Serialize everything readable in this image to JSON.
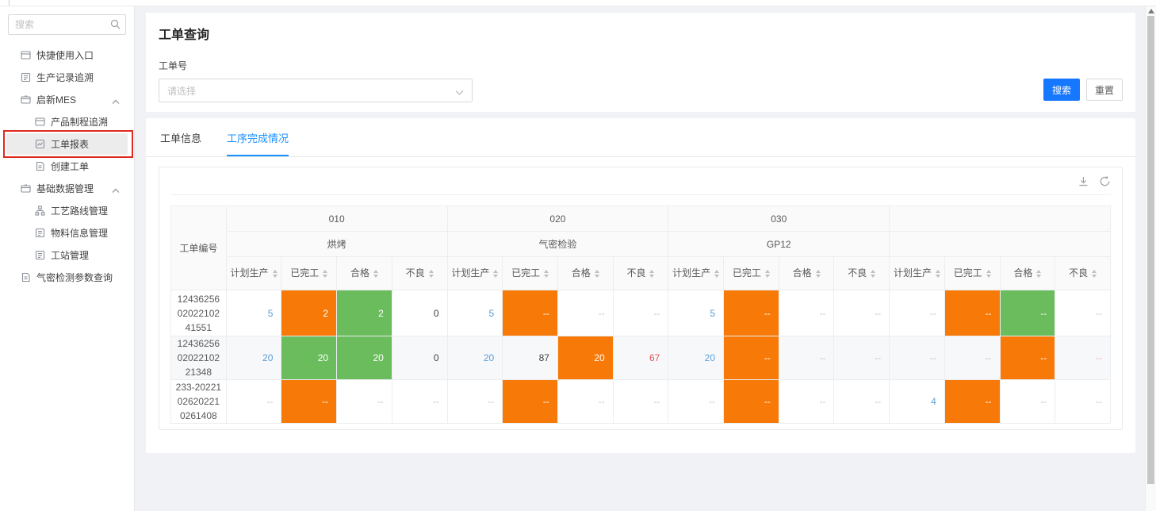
{
  "sidebar": {
    "search_placeholder": "搜索",
    "search_icon": "magnifier-icon",
    "items": [
      {
        "label": "快捷使用入口",
        "slug": "quick-entry",
        "level": 1,
        "icon": "panel-icon"
      },
      {
        "label": "生产记录追溯",
        "slug": "production-record-trace",
        "level": 1,
        "icon": "record-icon"
      },
      {
        "label": "启新MES",
        "slug": "qixin-mes",
        "level": 1,
        "icon": "box-icon",
        "chevron": "up"
      },
      {
        "label": "产品制程追溯",
        "slug": "product-process-trace",
        "level": 2,
        "icon": "panel-icon"
      },
      {
        "label": "工单报表",
        "slug": "work-order-report",
        "level": 2,
        "icon": "report-icon",
        "selected": true,
        "annotated": true
      },
      {
        "label": "创建工单",
        "slug": "create-work-order",
        "level": 2,
        "icon": "doc-icon"
      },
      {
        "label": "基础数据管理",
        "slug": "basic-data-management",
        "level": 1,
        "icon": "box-icon",
        "chevron": "up"
      },
      {
        "label": "工艺路线管理",
        "slug": "process-route-management",
        "level": 2,
        "icon": "flow-icon"
      },
      {
        "label": "物料信息管理",
        "slug": "material-info-management",
        "level": 2,
        "icon": "record-icon"
      },
      {
        "label": "工站管理",
        "slug": "workstation-management",
        "level": 2,
        "icon": "record-icon"
      },
      {
        "label": "气密检测参数查询",
        "slug": "airtight-param-query",
        "level": 1,
        "icon": "doc-icon"
      }
    ]
  },
  "query": {
    "title": "工单查询",
    "field_label": "工单号",
    "select_placeholder": "请选择",
    "select_chevron_icon": "chevron-down-icon",
    "search_button": "搜索",
    "reset_button": "重置"
  },
  "tabs": [
    {
      "label": "工单信息",
      "active": false
    },
    {
      "label": "工序完成情况",
      "active": true
    }
  ],
  "panel": {
    "toolbar_icons": [
      "download-icon",
      "refresh-icon"
    ]
  },
  "table": {
    "id_column_header": "工单编号",
    "groups": [
      {
        "code": "010",
        "name": "烘烤"
      },
      {
        "code": "020",
        "name": "气密检验"
      },
      {
        "code": "030",
        "name": "GP12"
      },
      {
        "code": "",
        "name": ""
      }
    ],
    "sub_columns": [
      "计划生产",
      "已完工",
      "合格",
      "不良"
    ],
    "sort_icon": "sort-carets-icon",
    "rows": [
      {
        "id": "124362560202210241551",
        "striped": false,
        "cells": [
          {
            "t": "5",
            "s": "link"
          },
          {
            "t": "2",
            "bg": "orange"
          },
          {
            "t": "2",
            "bg": "green"
          },
          {
            "t": "0",
            "s": "plain"
          },
          {
            "t": "5",
            "s": "link"
          },
          {
            "t": "--",
            "bg": "orange"
          },
          {
            "t": "--",
            "s": "muted"
          },
          {
            "t": "--",
            "s": "muted"
          },
          {
            "t": "5",
            "s": "link"
          },
          {
            "t": "--",
            "bg": "orange"
          },
          {
            "t": "--",
            "s": "muted"
          },
          {
            "t": "--",
            "s": "muted"
          },
          {
            "t": "--",
            "s": "muted"
          },
          {
            "t": "--",
            "bg": "orange"
          },
          {
            "t": "--",
            "bg": "green"
          },
          {
            "t": "--",
            "s": "muted"
          }
        ]
      },
      {
        "id": "124362560202210221348",
        "striped": true,
        "cells": [
          {
            "t": "20",
            "s": "link"
          },
          {
            "t": "20",
            "bg": "green"
          },
          {
            "t": "20",
            "bg": "green"
          },
          {
            "t": "0",
            "s": "plain"
          },
          {
            "t": "20",
            "s": "link"
          },
          {
            "t": "87",
            "s": "plain"
          },
          {
            "t": "20",
            "bg": "orange"
          },
          {
            "t": "67",
            "s": "red"
          },
          {
            "t": "20",
            "s": "link"
          },
          {
            "t": "--",
            "bg": "orange"
          },
          {
            "t": "--",
            "s": "muted"
          },
          {
            "t": "--",
            "s": "muted"
          },
          {
            "t": "--",
            "s": "muted"
          },
          {
            "t": "--",
            "s": "muted"
          },
          {
            "t": "--",
            "bg": "orange"
          },
          {
            "t": "--",
            "s": "red-muted"
          }
        ]
      },
      {
        "id": "233-20221026202210261408",
        "striped": false,
        "cells": [
          {
            "t": "--",
            "s": "muted"
          },
          {
            "t": "--",
            "bg": "orange"
          },
          {
            "t": "--",
            "s": "muted"
          },
          {
            "t": "--",
            "s": "muted"
          },
          {
            "t": "--",
            "s": "muted"
          },
          {
            "t": "--",
            "bg": "orange"
          },
          {
            "t": "--",
            "s": "muted"
          },
          {
            "t": "--",
            "s": "muted"
          },
          {
            "t": "--",
            "s": "muted"
          },
          {
            "t": "--",
            "bg": "orange"
          },
          {
            "t": "--",
            "s": "muted"
          },
          {
            "t": "--",
            "s": "muted"
          },
          {
            "t": "4",
            "s": "link"
          },
          {
            "t": "--",
            "bg": "orange"
          },
          {
            "t": "--",
            "s": "muted"
          },
          {
            "t": "--",
            "s": "muted"
          }
        ]
      }
    ]
  },
  "colors": {
    "primary_blue": "#1677ff",
    "tab_active_blue": "#1890ff",
    "cell_orange": "#f77a08",
    "cell_green": "#6abc5c",
    "link_blue": "#5a9fd8",
    "danger_red": "#e25757",
    "annotation_red": "#dd2a20",
    "page_bg": "#f0f2f5"
  }
}
